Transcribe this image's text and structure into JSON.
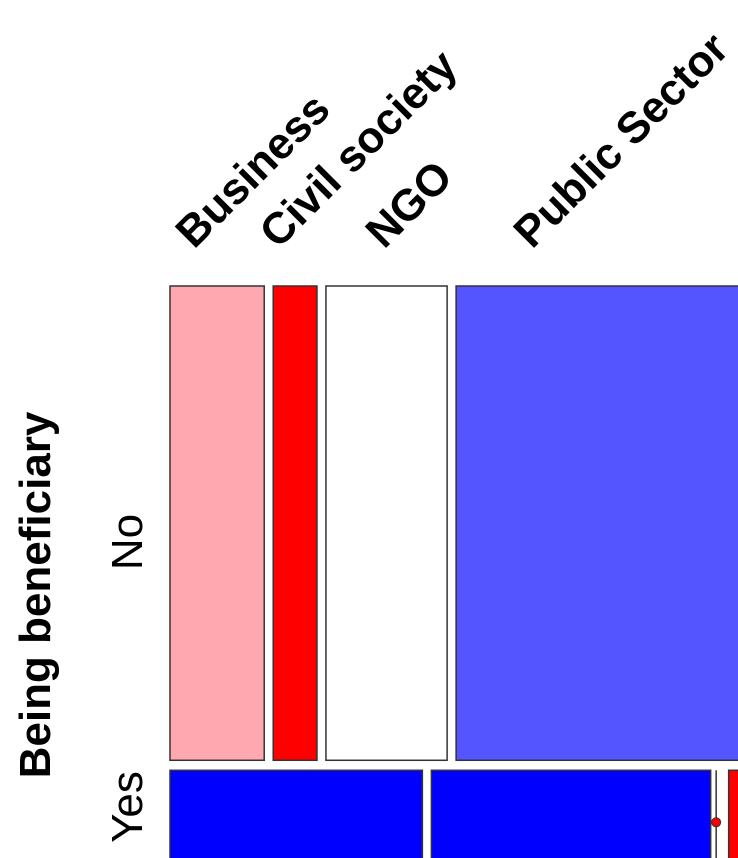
{
  "chart_data": {
    "type": "mosaic",
    "column_variable_categories": [
      "Business",
      "Civil society",
      "NGO",
      "Public Sector"
    ],
    "row_variable": "Being beneficiary",
    "row_categories": [
      "No",
      "Yes"
    ],
    "row_shares": [
      0.835,
      0.165
    ],
    "column_shares_by_row": [
      {
        "row": "No",
        "values": [
          {
            "category": "Business",
            "share": 0.14,
            "color": "#FFA8AF"
          },
          {
            "category": "Civil society",
            "share": 0.065,
            "color": "#FF0000"
          },
          {
            "category": "NGO",
            "share": 0.18,
            "color": "#FFFFFF"
          },
          {
            "category": "Public Sector",
            "share": 0.615,
            "color": "#5555FF"
          }
        ]
      },
      {
        "row": "Yes",
        "values": [
          {
            "category": "Business",
            "share": 0.375,
            "color": "#0000FF"
          },
          {
            "category": "Civil society",
            "share": 0.415,
            "color": "#0000FF"
          },
          {
            "category": "NGO",
            "share": 0.0,
            "color": "#FF0000"
          },
          {
            "category": "Public Sector",
            "share": 0.21,
            "color": "#FF0000"
          }
        ]
      }
    ]
  }
}
